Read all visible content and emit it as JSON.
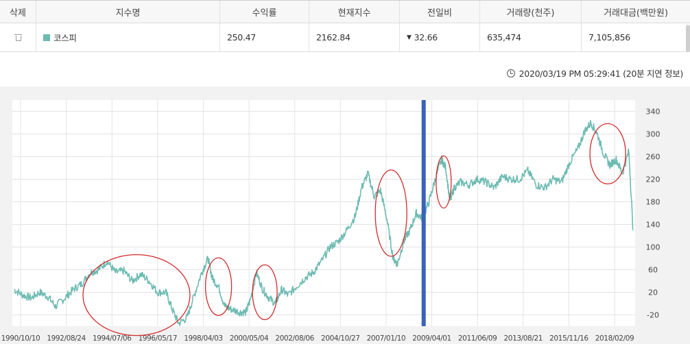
{
  "table": {
    "headers": [
      "삭제",
      "지수명",
      "수익률",
      "현재지수",
      "전일비",
      "거래량(천주)",
      "거래대금(백만원)"
    ],
    "row": {
      "name": "코스피",
      "return_rate": "250.47",
      "current_index": "2162.84",
      "change_arrow": "▼",
      "change": "32.66",
      "volume": "635,474",
      "trade_value": "7,105,856",
      "series_color": "#6dbbb2"
    }
  },
  "timestamp": "2020/03/19 PM 05:29:41 (20분 지연 정보)",
  "chart_data": {
    "type": "line",
    "y_ticks": [
      "340",
      "300",
      "260",
      "220",
      "180",
      "140",
      "100",
      "60",
      "20",
      "-20"
    ],
    "ylim": [
      -40,
      360
    ],
    "x_ticks": [
      "1990/10/10",
      "1992/08/24",
      "1994/07/06",
      "1996/05/17",
      "1998/04/03",
      "2000/05/04",
      "2002/08/06",
      "2004/10/27",
      "2007/01/10",
      "2009/04/01",
      "2011/06/09",
      "2013/08/21",
      "2015/11/16",
      "2018/02/09"
    ],
    "grid": true,
    "line_color": "#6dbbb2",
    "marker_color": "#3a62b8",
    "marker_x": 2010.25,
    "circle_color": "#d22a2a",
    "series": [
      {
        "x": [
          1990.78,
          1991.2,
          1991.6,
          1992.0,
          1992.4,
          1992.75,
          1993.2,
          1993.6,
          1994.0,
          1994.4,
          1994.8,
          1995.2,
          1995.6,
          1996.0,
          1996.4,
          1996.8,
          1997.2,
          1997.6,
          1998.0,
          1998.3,
          1998.6,
          1999.0,
          1999.3,
          1999.7,
          2000.0,
          2000.2,
          2000.5,
          2000.8,
          2001.1,
          2001.5,
          2001.8,
          2002.0,
          2002.3,
          2002.6,
          2002.9,
          2003.2,
          2003.5,
          2003.8,
          2004.2,
          2004.6,
          2005.0,
          2005.4,
          2005.8,
          2006.2,
          2006.6,
          2007.0,
          2007.3,
          2007.6,
          2007.9,
          2008.2,
          2008.5,
          2008.8,
          2009.0,
          2009.3,
          2009.6,
          2009.9,
          2010.2,
          2010.5,
          2010.8,
          2011.1,
          2011.3,
          2011.5,
          2011.7,
          2012.0,
          2012.4,
          2012.8,
          2013.2,
          2013.6,
          2014.0,
          2014.4,
          2014.8,
          2015.2,
          2015.6,
          2016.0,
          2016.4,
          2016.8,
          2017.2,
          2017.6,
          2017.9,
          2018.2,
          2018.5,
          2018.8,
          2019.1,
          2019.4,
          2019.7,
          2020.0,
          2020.2
        ],
        "values": [
          25,
          15,
          10,
          20,
          12,
          -5,
          10,
          25,
          35,
          55,
          60,
          75,
          55,
          58,
          40,
          52,
          40,
          20,
          20,
          -10,
          -35,
          -25,
          10,
          55,
          80,
          45,
          30,
          -5,
          -10,
          -15,
          -15,
          5,
          55,
          25,
          10,
          0,
          25,
          15,
          30,
          45,
          55,
          75,
          100,
          110,
          130,
          155,
          205,
          230,
          190,
          200,
          150,
          80,
          70,
          110,
          130,
          160,
          150,
          180,
          220,
          255,
          240,
          180,
          205,
          215,
          210,
          220,
          215,
          205,
          225,
          220,
          220,
          235,
          210,
          205,
          220,
          215,
          250,
          275,
          305,
          320,
          300,
          265,
          245,
          255,
          230,
          270,
          130
        ]
      }
    ]
  }
}
